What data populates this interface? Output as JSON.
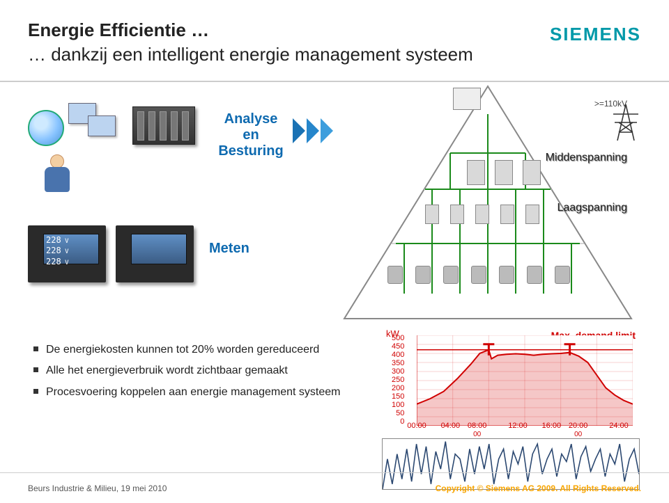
{
  "brand": {
    "name": "SIEMENS",
    "color": "#0099a9"
  },
  "title": {
    "line1": "Energie Efficientie …",
    "line2": "… dankzij een intelligent energie management systeem"
  },
  "labels": {
    "analyse": "Analyse\nen\nBesturing",
    "meten": "Meten",
    "high_voltage": ">=110kV",
    "medium_voltage": "Middenspanning",
    "low_voltage": "Laagspanning"
  },
  "meter": {
    "readings": [
      "228",
      "228",
      "228"
    ],
    "unit": "V"
  },
  "bullets": [
    "De energiekosten kunnen tot 20% worden gereduceerd",
    "Alle het energieverbruik wordt zichtbaar gemaakt",
    "Procesvoering koppelen aan energie management systeem"
  ],
  "demand_chart": {
    "type": "line",
    "title": "Max. demand limit",
    "y_unit": "kW",
    "ylim": [
      0,
      500
    ],
    "ytick_step": 50,
    "yticks": [
      500,
      450,
      400,
      350,
      300,
      250,
      200,
      150,
      100,
      50,
      0
    ],
    "xticks": [
      "00:00",
      "04:00",
      "08:00",
      "12:00",
      "16:00",
      "20:00",
      "24:00"
    ],
    "xtick_extra": "00",
    "series_color": "#d00000",
    "fill_color": "#d00000",
    "fill_opacity": 0.22,
    "limit_color": "#d00000",
    "limit_value": 420,
    "grid_color": "#d00000",
    "grid_opacity": 0.18,
    "label_fontsize": 11,
    "data": [
      [
        0,
        120
      ],
      [
        1.5,
        150
      ],
      [
        3,
        190
      ],
      [
        4.5,
        260
      ],
      [
        6,
        340
      ],
      [
        7,
        400
      ],
      [
        8,
        420
      ],
      [
        8.3,
        370
      ],
      [
        9,
        390
      ],
      [
        10,
        395
      ],
      [
        11,
        398
      ],
      [
        12,
        395
      ],
      [
        13,
        390
      ],
      [
        14,
        395
      ],
      [
        15,
        398
      ],
      [
        16,
        400
      ],
      [
        17,
        405
      ],
      [
        18,
        385
      ],
      [
        19,
        350
      ],
      [
        20,
        280
      ],
      [
        21,
        210
      ],
      [
        22,
        170
      ],
      [
        23,
        140
      ],
      [
        24,
        120
      ]
    ]
  },
  "trend_strip": {
    "type": "line",
    "series_color": "#2a4770",
    "background_color": "#ffffff",
    "ylim": [
      0,
      100
    ],
    "data": [
      0,
      60,
      10,
      70,
      20,
      80,
      15,
      90,
      30,
      85,
      10,
      75,
      40,
      95,
      20,
      70,
      60,
      15,
      80,
      30,
      85,
      40,
      90,
      10,
      60,
      80,
      20,
      75,
      50,
      85,
      15,
      70,
      90,
      30,
      60,
      80,
      25,
      70,
      55,
      90,
      20,
      65,
      85,
      35,
      60,
      80,
      25,
      70,
      50,
      90,
      15,
      60,
      80,
      30
    ]
  },
  "diagram": {
    "type": "tree",
    "levels": [
      "pc",
      "switchgear",
      "breakers",
      "loads"
    ],
    "line_color": "#1a8a1a"
  },
  "footer": {
    "left": "Beurs Industrie & Milieu, 19 mei 2010",
    "right": "Copyright © Siemens AG 2009. All Rights Reserved."
  },
  "colors": {
    "accent_blue": "#0e6ab0",
    "text": "#222222",
    "rule": "#cccccc",
    "footer_right": "#f7a400"
  }
}
